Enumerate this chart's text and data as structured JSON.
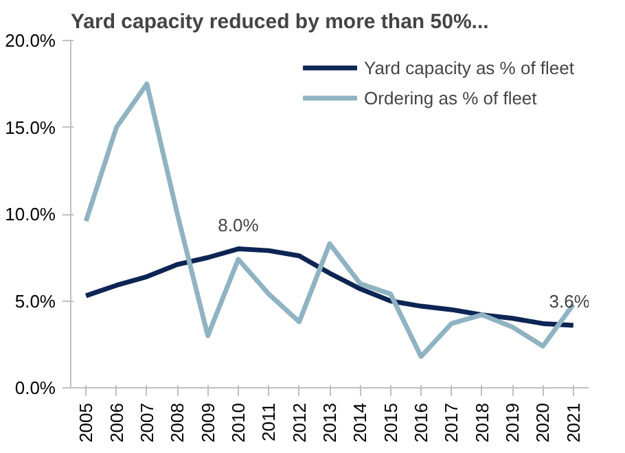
{
  "chart_data": {
    "type": "line",
    "title": "Yard capacity reduced by more than 50%...",
    "categories": [
      "2005",
      "2006",
      "2007",
      "2008",
      "2009",
      "2010",
      "2011",
      "2012",
      "2013",
      "2014",
      "2015",
      "2016",
      "2017",
      "2018",
      "2019",
      "2020",
      "2021"
    ],
    "series": [
      {
        "name": "Yard capacity as % of fleet",
        "color": "#0d2554",
        "values": [
          5.3,
          5.9,
          6.4,
          7.1,
          7.5,
          8.0,
          7.9,
          7.6,
          6.6,
          5.7,
          5.0,
          4.7,
          4.5,
          4.2,
          4.0,
          3.7,
          3.6
        ]
      },
      {
        "name": "Ordering as % of fleet",
        "color": "#8fb3c3",
        "values": [
          9.6,
          15.0,
          17.5,
          10.0,
          3.0,
          7.4,
          5.4,
          3.8,
          8.3,
          6.0,
          5.4,
          1.8,
          3.7,
          4.2,
          3.5,
          2.4,
          4.8
        ]
      }
    ],
    "ylim": [
      0,
      20
    ],
    "yticks": [
      {
        "value": 0,
        "label": "0.0%"
      },
      {
        "value": 5,
        "label": "5.0%"
      },
      {
        "value": 10,
        "label": "10.0%"
      },
      {
        "value": 15,
        "label": "15.0%"
      },
      {
        "value": 20,
        "label": "20.0%"
      }
    ],
    "annotations": [
      {
        "text": "8.0%",
        "x": "2010",
        "y": 8.0
      },
      {
        "text": "3.6%",
        "x": "2021",
        "y": 3.6
      }
    ],
    "grid": false,
    "legend": "top right",
    "line_style": "solid"
  }
}
